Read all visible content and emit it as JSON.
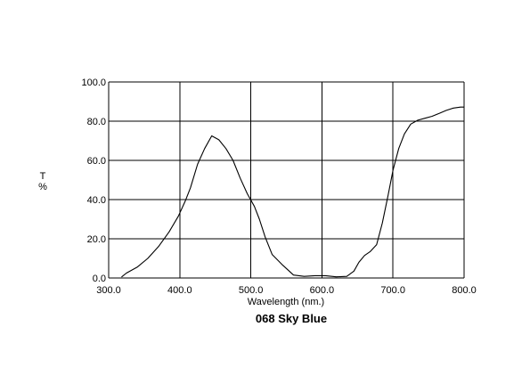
{
  "chart_data": {
    "type": "line",
    "title": "068 Sky Blue",
    "xlabel": "Wavelength (nm.)",
    "ylabel": "T\n%",
    "xlim": [
      300.0,
      800.0
    ],
    "ylim": [
      0.0,
      100.0
    ],
    "x_ticks": [
      "300.0",
      "400.0",
      "500.0",
      "600.0",
      "700.0",
      "800.0"
    ],
    "y_ticks": [
      "0.0",
      "20.0",
      "40.0",
      "60.0",
      "80.0",
      "100.0"
    ],
    "grid": true,
    "series": [
      {
        "color": "#000000",
        "x": [
          318,
          325,
          340,
          355,
          370,
          385,
          398,
          408,
          415,
          425,
          435,
          445,
          455,
          465,
          475,
          485,
          495,
          505,
          512,
          520,
          530,
          545,
          560,
          575,
          590,
          605,
          620,
          635,
          645,
          652,
          660,
          668,
          677,
          685,
          693,
          700,
          708,
          716,
          725,
          735,
          745,
          755,
          765,
          775,
          785,
          795,
          800
        ],
        "y": [
          0.5,
          2.5,
          5.5,
          10,
          16,
          23.5,
          31.5,
          39.5,
          46,
          58,
          66,
          72.5,
          70.5,
          66,
          60,
          51,
          43,
          36.5,
          30,
          21,
          12,
          6.5,
          1.5,
          0.8,
          1.2,
          1.2,
          0.6,
          0.8,
          3.5,
          8,
          11.5,
          13.5,
          17,
          28,
          42,
          55,
          66,
          73.5,
          78.5,
          80.5,
          81.5,
          82.5,
          84,
          85.5,
          86.7,
          87.2,
          87.2
        ]
      }
    ]
  }
}
